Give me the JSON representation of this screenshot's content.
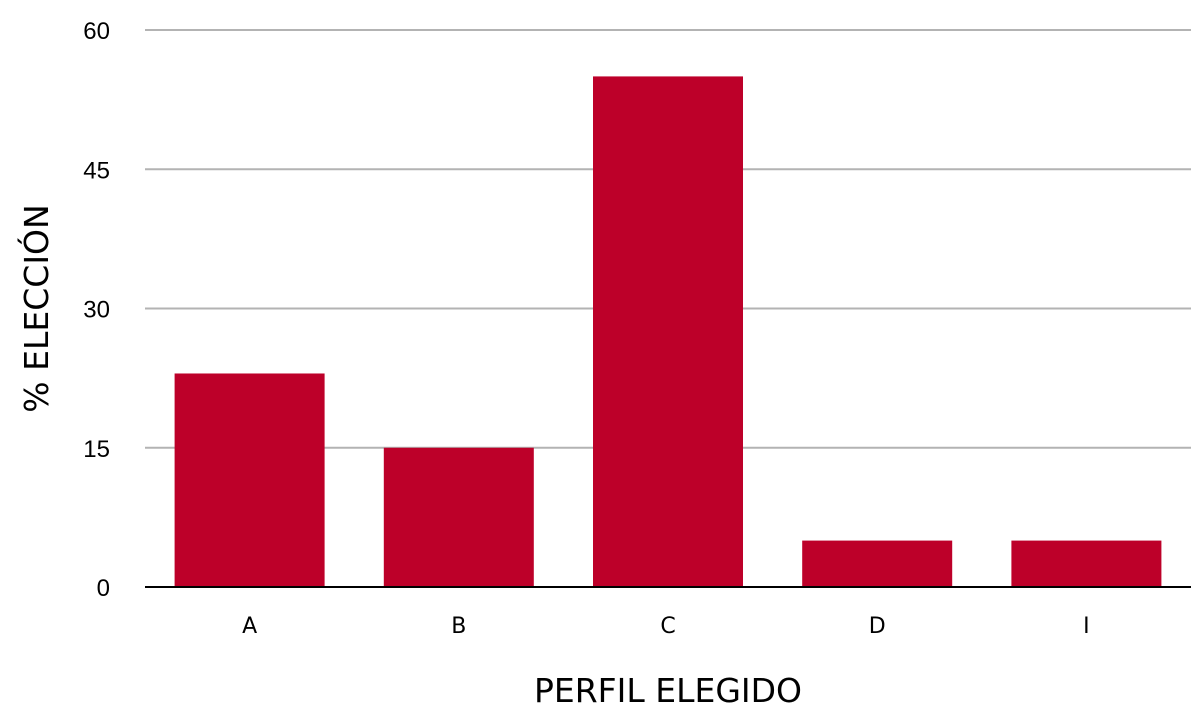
{
  "chart_data": {
    "type": "bar",
    "title": "",
    "xlabel": "PERFIL ELEGIDO",
    "ylabel": "% ELECCIÓN",
    "categories": [
      "A",
      "B",
      "C",
      "D",
      "I"
    ],
    "values": [
      23,
      15,
      55,
      5,
      5
    ],
    "ylim": [
      0,
      60
    ],
    "yticks": [
      0,
      15,
      30,
      45,
      60
    ],
    "grid": true,
    "legend": "none",
    "colors": {
      "bar": "#bd0029",
      "grid": "#b3b3b3",
      "axis": "#000000"
    }
  }
}
